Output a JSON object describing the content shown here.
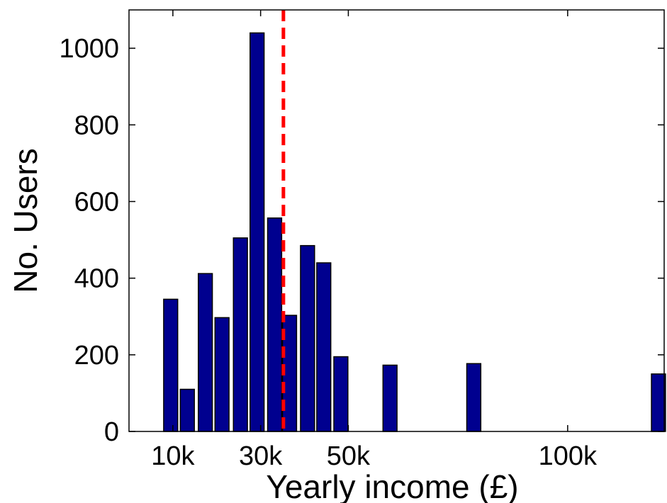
{
  "chart_data": {
    "type": "bar",
    "title": "",
    "xlabel": "Yearly income (£)",
    "ylabel": "No. Users",
    "xlim": [
      0,
      122000
    ],
    "ylim": [
      0,
      1100
    ],
    "x_ticks": [
      {
        "value": 10000,
        "label": "10k"
      },
      {
        "value": 30000,
        "label": "30k"
      },
      {
        "value": 50000,
        "label": "50k"
      },
      {
        "value": 100000,
        "label": "100k"
      }
    ],
    "y_ticks": [
      {
        "value": 0,
        "label": "0"
      },
      {
        "value": 200,
        "label": "200"
      },
      {
        "value": 400,
        "label": "400"
      },
      {
        "value": 600,
        "label": "600"
      },
      {
        "value": 800,
        "label": "800"
      },
      {
        "value": 1000,
        "label": "1000"
      }
    ],
    "bar_width": 3200,
    "bars": [
      {
        "x": 9500,
        "value": 345
      },
      {
        "x": 13300,
        "value": 110
      },
      {
        "x": 17400,
        "value": 412
      },
      {
        "x": 21200,
        "value": 297
      },
      {
        "x": 25400,
        "value": 505
      },
      {
        "x": 29200,
        "value": 1040
      },
      {
        "x": 33200,
        "value": 557
      },
      {
        "x": 36600,
        "value": 303
      },
      {
        "x": 40700,
        "value": 485
      },
      {
        "x": 44400,
        "value": 440
      },
      {
        "x": 48300,
        "value": 195
      },
      {
        "x": 59500,
        "value": 173
      },
      {
        "x": 78600,
        "value": 177
      },
      {
        "x": 120700,
        "value": 150
      }
    ],
    "reference_line": {
      "x": 35200,
      "style": "dashed"
    },
    "bar_color": "#00008f",
    "reference_color": "#ff0000",
    "grid": false,
    "legend": "none"
  }
}
